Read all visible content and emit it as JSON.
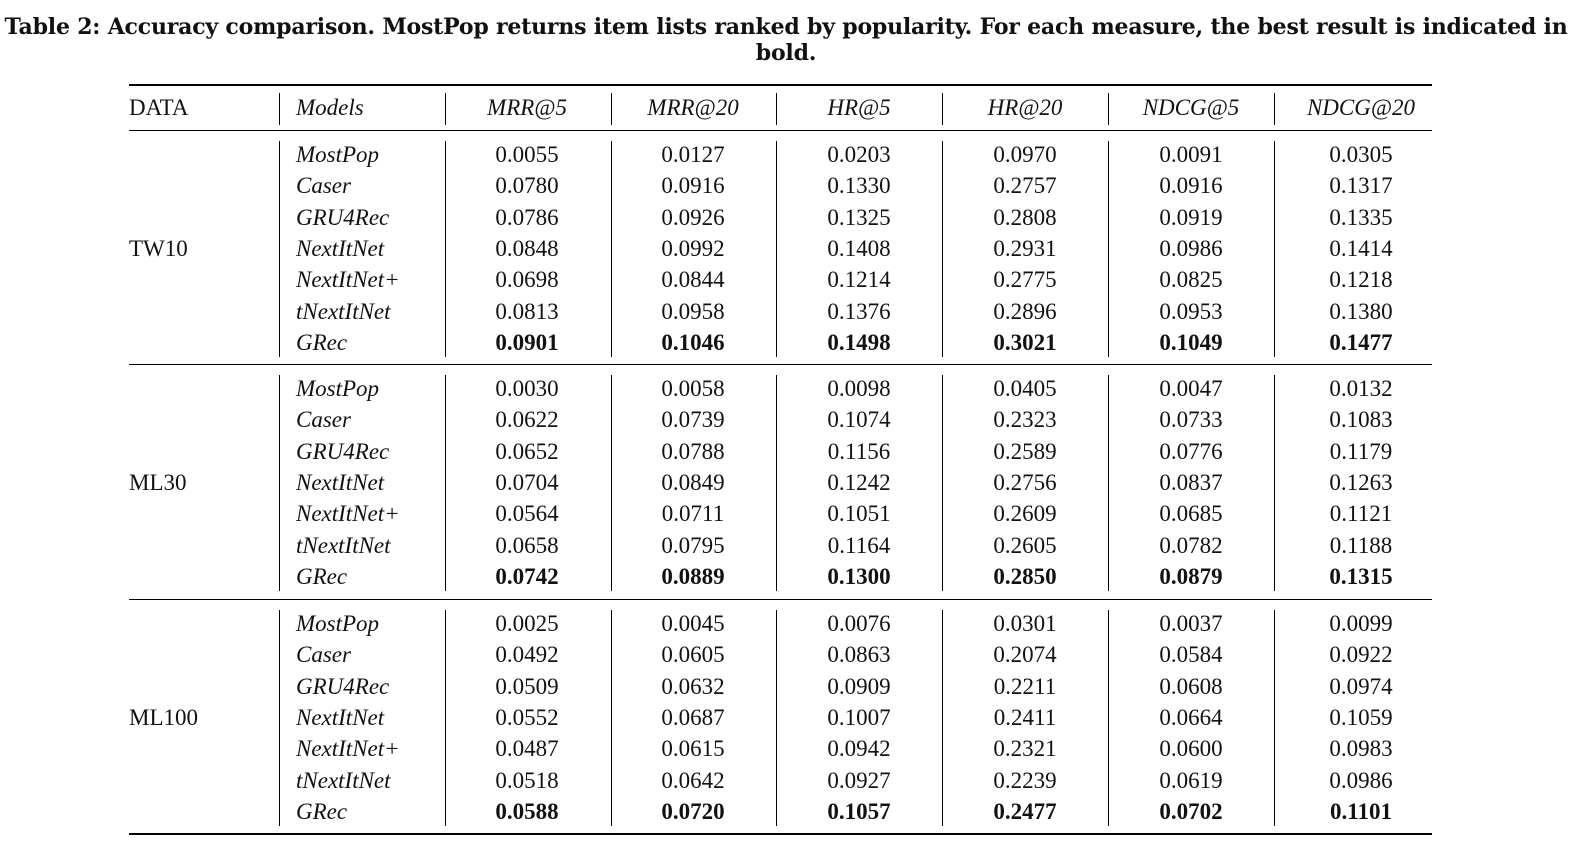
{
  "caption": "Table 2: Accuracy comparison. MostPop returns item lists ranked by popularity. For each measure, the best result is indicated in bold.",
  "table": {
    "headers": [
      "DATA",
      "Models",
      "MRR@5",
      "MRR@20",
      "HR@5",
      "HR@20",
      "NDCG@5",
      "NDCG@20"
    ],
    "groups": [
      {
        "data": "TW10",
        "rows": [
          {
            "model": "MostPop",
            "values": [
              "0.0055",
              "0.0127",
              "0.0203",
              "0.0970",
              "0.0091",
              "0.0305"
            ]
          },
          {
            "model": "Caser",
            "values": [
              "0.0780",
              "0.0916",
              "0.1330",
              "0.2757",
              "0.0916",
              "0.1317"
            ]
          },
          {
            "model": "GRU4Rec",
            "values": [
              "0.0786",
              "0.0926",
              "0.1325",
              "0.2808",
              "0.0919",
              "0.1335"
            ]
          },
          {
            "model": "NextItNet",
            "values": [
              "0.0848",
              "0.0992",
              "0.1408",
              "0.2931",
              "0.0986",
              "0.1414"
            ]
          },
          {
            "model": "NextItNet+",
            "values": [
              "0.0698",
              "0.0844",
              "0.1214",
              "0.2775",
              "0.0825",
              "0.1218"
            ]
          },
          {
            "model": "tNextItNet",
            "values": [
              "0.0813",
              "0.0958",
              "0.1376",
              "0.2896",
              "0.0953",
              "0.1380"
            ]
          },
          {
            "model": "GRec",
            "values": [
              "0.0901",
              "0.1046",
              "0.1498",
              "0.3021",
              "0.1049",
              "0.1477"
            ],
            "best": true
          }
        ]
      },
      {
        "data": "ML30",
        "rows": [
          {
            "model": "MostPop",
            "values": [
              "0.0030",
              "0.0058",
              "0.0098",
              "0.0405",
              "0.0047",
              "0.0132"
            ]
          },
          {
            "model": "Caser",
            "values": [
              "0.0622",
              "0.0739",
              "0.1074",
              "0.2323",
              "0.0733",
              "0.1083"
            ]
          },
          {
            "model": "GRU4Rec",
            "values": [
              "0.0652",
              "0.0788",
              "0.1156",
              "0.2589",
              "0.0776",
              "0.1179"
            ]
          },
          {
            "model": "NextItNet",
            "values": [
              "0.0704",
              "0.0849",
              "0.1242",
              "0.2756",
              "0.0837",
              "0.1263"
            ]
          },
          {
            "model": "NextItNet+",
            "values": [
              "0.0564",
              "0.0711",
              "0.1051",
              "0.2609",
              "0.0685",
              "0.1121"
            ]
          },
          {
            "model": "tNextItNet",
            "values": [
              "0.0658",
              "0.0795",
              "0.1164",
              "0.2605",
              "0.0782",
              "0.1188"
            ]
          },
          {
            "model": "GRec",
            "values": [
              "0.0742",
              "0.0889",
              "0.1300",
              "0.2850",
              "0.0879",
              "0.1315"
            ],
            "best": true
          }
        ]
      },
      {
        "data": "ML100",
        "rows": [
          {
            "model": "MostPop",
            "values": [
              "0.0025",
              "0.0045",
              "0.0076",
              "0.0301",
              "0.0037",
              "0.0099"
            ]
          },
          {
            "model": "Caser",
            "values": [
              "0.0492",
              "0.0605",
              "0.0863",
              "0.2074",
              "0.0584",
              "0.0922"
            ]
          },
          {
            "model": "GRU4Rec",
            "values": [
              "0.0509",
              "0.0632",
              "0.0909",
              "0.2211",
              "0.0608",
              "0.0974"
            ]
          },
          {
            "model": "NextItNet",
            "values": [
              "0.0552",
              "0.0687",
              "0.1007",
              "0.2411",
              "0.0664",
              "0.1059"
            ]
          },
          {
            "model": "NextItNet+",
            "values": [
              "0.0487",
              "0.0615",
              "0.0942",
              "0.2321",
              "0.0600",
              "0.0983"
            ]
          },
          {
            "model": "tNextItNet",
            "values": [
              "0.0518",
              "0.0642",
              "0.0927",
              "0.2239",
              "0.0619",
              "0.0986"
            ]
          },
          {
            "model": "GRec",
            "values": [
              "0.0588",
              "0.0720",
              "0.1057",
              "0.2477",
              "0.0702",
              "0.1101"
            ],
            "best": true
          }
        ]
      }
    ]
  }
}
